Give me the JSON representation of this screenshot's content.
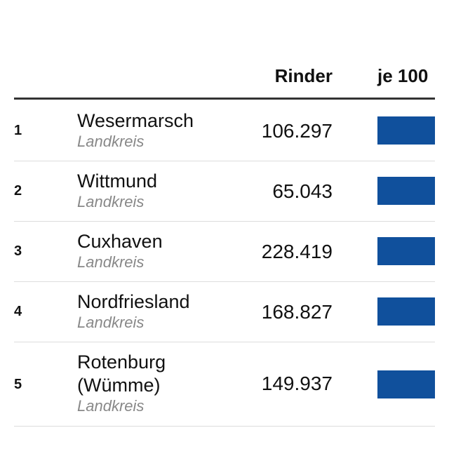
{
  "table": {
    "columns": {
      "rank": "",
      "name": "",
      "cattle": "Rinder",
      "per100": "je 100"
    }
  },
  "chart_data": {
    "type": "table",
    "title": "",
    "columns": [
      "",
      "",
      "Rinder",
      "je 100"
    ],
    "bar_color": "#10509c",
    "rows": [
      {
        "rank": "1",
        "name": "Wesermarsch",
        "type": "Landkreis",
        "cattle": "106.297"
      },
      {
        "rank": "2",
        "name": "Wittmund",
        "type": "Landkreis",
        "cattle": "65.043"
      },
      {
        "rank": "3",
        "name": "Cuxhaven",
        "type": "Landkreis",
        "cattle": "228.419"
      },
      {
        "rank": "4",
        "name": "Nordfriesland",
        "type": "Landkreis",
        "cattle": "168.827"
      },
      {
        "rank": "5",
        "name": "Rotenburg (Wümme)",
        "type": "Landkreis",
        "cattle": "149.937"
      }
    ]
  }
}
